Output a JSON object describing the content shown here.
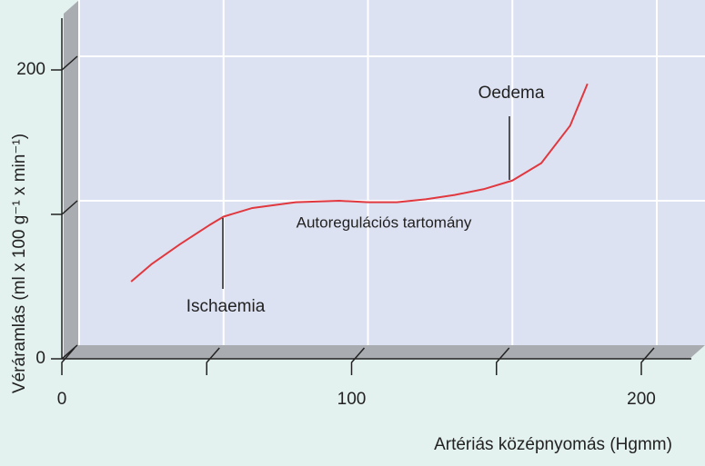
{
  "chart_data": {
    "type": "line",
    "x_label": "Artériás középnyomás (Hgmm)",
    "y_label": "Véráramlás (ml x 100 g⁻¹ x min⁻¹)",
    "xlim": [
      0,
      200
    ],
    "xticks": [
      0,
      100,
      200
    ],
    "x_minor_ticks": [
      50,
      150
    ],
    "ylim": [
      0,
      200
    ],
    "yticks": [
      0,
      200
    ],
    "y_minor_ticks": [
      100
    ],
    "grid": true,
    "series": [
      {
        "color": "#e0383e",
        "x": [
          18,
          25,
          35,
          45,
          50,
          60,
          75,
          90,
          100,
          110,
          120,
          130,
          140,
          150,
          160,
          170,
          176
        ],
        "values": [
          44,
          56,
          70,
          83,
          89,
          95,
          99,
          100,
          99,
          99,
          101,
          104,
          108,
          114,
          126,
          152,
          181
        ]
      }
    ],
    "annotations": [
      "Oedema",
      "Ischaemia",
      "Autoregulációs tartomány"
    ]
  }
}
